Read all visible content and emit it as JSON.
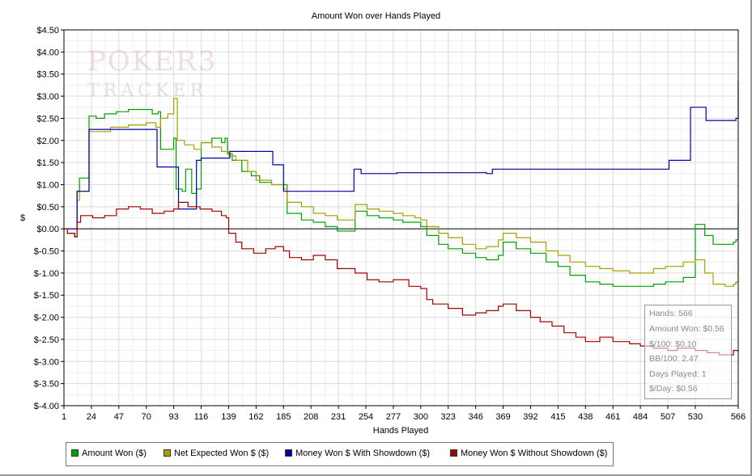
{
  "chart_data": {
    "type": "line",
    "title": "Amount Won over Hands Played",
    "xlabel": "Hands Played",
    "ylabel": "$",
    "xlim": [
      1,
      566
    ],
    "ylim": [
      -4.0,
      4.5
    ],
    "x_ticks": [
      1,
      24,
      47,
      70,
      93,
      116,
      139,
      162,
      185,
      208,
      231,
      254,
      277,
      300,
      323,
      346,
      369,
      392,
      415,
      438,
      461,
      484,
      507,
      530,
      566
    ],
    "y_ticks": [
      {
        "value": 4.5,
        "label": "$4.50"
      },
      {
        "value": 4.0,
        "label": "$4.00"
      },
      {
        "value": 3.5,
        "label": "$3.50"
      },
      {
        "value": 3.0,
        "label": "$3.00"
      },
      {
        "value": 2.5,
        "label": "$2.50"
      },
      {
        "value": 2.0,
        "label": "$2.00"
      },
      {
        "value": 1.5,
        "label": "$1.50"
      },
      {
        "value": 1.0,
        "label": "$1.00"
      },
      {
        "value": 0.5,
        "label": "$0.50"
      },
      {
        "value": 0.0,
        "label": "$0.00"
      },
      {
        "value": -0.5,
        "label": "$-0.50"
      },
      {
        "value": -1.0,
        "label": "$-1.00"
      },
      {
        "value": -1.5,
        "label": "$-1.50"
      },
      {
        "value": -2.0,
        "label": "$-2.00"
      },
      {
        "value": -2.5,
        "label": "$-2.50"
      },
      {
        "value": -3.0,
        "label": "$-3.00"
      },
      {
        "value": -3.5,
        "label": "$-3.50"
      },
      {
        "value": -4.0,
        "label": "$-4.00"
      }
    ],
    "grid": true,
    "legend_position": "bottom",
    "series": [
      {
        "name": "Amount Won ($)",
        "color": "#00a000",
        "points": [
          [
            1,
            0
          ],
          [
            4,
            -0.1
          ],
          [
            10,
            -0.18
          ],
          [
            12,
            0.85
          ],
          [
            14,
            1.15
          ],
          [
            20,
            1.15
          ],
          [
            22,
            2.55
          ],
          [
            28,
            2.5
          ],
          [
            35,
            2.6
          ],
          [
            45,
            2.65
          ],
          [
            55,
            2.7
          ],
          [
            70,
            2.7
          ],
          [
            75,
            2.6
          ],
          [
            80,
            2.65
          ],
          [
            82,
            1.8
          ],
          [
            88,
            1.8
          ],
          [
            93,
            2.05
          ],
          [
            95,
            0.9
          ],
          [
            100,
            0.85
          ],
          [
            103,
            1.35
          ],
          [
            108,
            0.8
          ],
          [
            112,
            0.9
          ],
          [
            116,
            1.95
          ],
          [
            125,
            2.05
          ],
          [
            133,
            1.95
          ],
          [
            136,
            2.05
          ],
          [
            138,
            1.7
          ],
          [
            142,
            1.55
          ],
          [
            150,
            1.3
          ],
          [
            158,
            1.2
          ],
          [
            165,
            1.05
          ],
          [
            175,
            1.0
          ],
          [
            185,
            1.0
          ],
          [
            188,
            0.35
          ],
          [
            200,
            0.2
          ],
          [
            210,
            0.15
          ],
          [
            220,
            0.05
          ],
          [
            230,
            -0.05
          ],
          [
            243,
            -0.05
          ],
          [
            245,
            0.4
          ],
          [
            255,
            0.3
          ],
          [
            265,
            0.25
          ],
          [
            277,
            0.2
          ],
          [
            285,
            0.15
          ],
          [
            300,
            0.05
          ],
          [
            305,
            -0.15
          ],
          [
            315,
            -0.35
          ],
          [
            323,
            -0.45
          ],
          [
            335,
            -0.55
          ],
          [
            346,
            -0.65
          ],
          [
            355,
            -0.7
          ],
          [
            365,
            -0.6
          ],
          [
            369,
            -0.3
          ],
          [
            380,
            -0.45
          ],
          [
            392,
            -0.55
          ],
          [
            405,
            -0.75
          ],
          [
            415,
            -0.85
          ],
          [
            425,
            -1.05
          ],
          [
            438,
            -1.2
          ],
          [
            450,
            -1.25
          ],
          [
            461,
            -1.3
          ],
          [
            475,
            -1.3
          ],
          [
            484,
            -1.3
          ],
          [
            495,
            -1.25
          ],
          [
            505,
            -1.2
          ],
          [
            520,
            -1.1
          ],
          [
            528,
            -1.1
          ],
          [
            530,
            0.1
          ],
          [
            538,
            -0.15
          ],
          [
            545,
            -0.35
          ],
          [
            555,
            -0.35
          ],
          [
            562,
            -0.3
          ],
          [
            564,
            -0.25
          ],
          [
            566,
            0.56
          ]
        ]
      },
      {
        "name": "Net Expected Won $ ($)",
        "color": "#a5a000",
        "points": [
          [
            1,
            0
          ],
          [
            4,
            -0.1
          ],
          [
            10,
            -0.18
          ],
          [
            12,
            0.65
          ],
          [
            14,
            0.85
          ],
          [
            20,
            0.85
          ],
          [
            22,
            2.2
          ],
          [
            30,
            2.2
          ],
          [
            40,
            2.3
          ],
          [
            55,
            2.35
          ],
          [
            70,
            2.4
          ],
          [
            78,
            2.3
          ],
          [
            82,
            2.5
          ],
          [
            88,
            2.6
          ],
          [
            93,
            2.95
          ],
          [
            96,
            2.0
          ],
          [
            102,
            1.9
          ],
          [
            110,
            1.8
          ],
          [
            116,
            1.95
          ],
          [
            125,
            1.85
          ],
          [
            133,
            1.75
          ],
          [
            139,
            1.65
          ],
          [
            145,
            1.55
          ],
          [
            155,
            1.3
          ],
          [
            162,
            1.1
          ],
          [
            175,
            1.0
          ],
          [
            185,
            0.9
          ],
          [
            188,
            0.6
          ],
          [
            200,
            0.5
          ],
          [
            210,
            0.35
          ],
          [
            220,
            0.3
          ],
          [
            230,
            0.2
          ],
          [
            243,
            0.2
          ],
          [
            245,
            0.55
          ],
          [
            255,
            0.45
          ],
          [
            265,
            0.4
          ],
          [
            277,
            0.35
          ],
          [
            285,
            0.3
          ],
          [
            295,
            0.25
          ],
          [
            300,
            0.2
          ],
          [
            305,
            0.05
          ],
          [
            315,
            -0.1
          ],
          [
            323,
            -0.2
          ],
          [
            335,
            -0.35
          ],
          [
            346,
            -0.45
          ],
          [
            355,
            -0.4
          ],
          [
            365,
            -0.25
          ],
          [
            369,
            -0.1
          ],
          [
            380,
            -0.2
          ],
          [
            392,
            -0.3
          ],
          [
            405,
            -0.5
          ],
          [
            415,
            -0.6
          ],
          [
            425,
            -0.75
          ],
          [
            438,
            -0.85
          ],
          [
            450,
            -0.9
          ],
          [
            461,
            -0.95
          ],
          [
            475,
            -1.0
          ],
          [
            484,
            -1.0
          ],
          [
            495,
            -0.9
          ],
          [
            505,
            -0.85
          ],
          [
            520,
            -0.75
          ],
          [
            530,
            -0.7
          ],
          [
            538,
            -1.0
          ],
          [
            545,
            -1.25
          ],
          [
            555,
            -1.3
          ],
          [
            562,
            -1.25
          ],
          [
            564,
            -1.2
          ],
          [
            566,
            -0.65
          ]
        ]
      },
      {
        "name": "Money Won $ With Showdown ($)",
        "color": "#0000a0",
        "points": [
          [
            1,
            0
          ],
          [
            12,
            0
          ],
          [
            12,
            0.85
          ],
          [
            21,
            0.85
          ],
          [
            22,
            2.25
          ],
          [
            78,
            2.25
          ],
          [
            79,
            1.4
          ],
          [
            96,
            1.4
          ],
          [
            97,
            0.45
          ],
          [
            112,
            0.45
          ],
          [
            112,
            1.55
          ],
          [
            116,
            1.6
          ],
          [
            139,
            1.6
          ],
          [
            140,
            1.75
          ],
          [
            175,
            1.75
          ],
          [
            176,
            1.45
          ],
          [
            184,
            1.45
          ],
          [
            185,
            0.85
          ],
          [
            243,
            0.85
          ],
          [
            244,
            1.35
          ],
          [
            249,
            1.35
          ],
          [
            250,
            1.25
          ],
          [
            280,
            1.27
          ],
          [
            355,
            1.25
          ],
          [
            360,
            1.35
          ],
          [
            507,
            1.35
          ],
          [
            508,
            1.55
          ],
          [
            525,
            1.55
          ],
          [
            526,
            2.75
          ],
          [
            538,
            2.75
          ],
          [
            539,
            2.45
          ],
          [
            562,
            2.45
          ],
          [
            564,
            2.5
          ],
          [
            566,
            3.35
          ]
        ]
      },
      {
        "name": "Money Won $ Without Showdown ($)",
        "color": "#a00000",
        "points": [
          [
            1,
            0
          ],
          [
            4,
            -0.1
          ],
          [
            10,
            -0.18
          ],
          [
            12,
            0.15
          ],
          [
            15,
            0.3
          ],
          [
            25,
            0.25
          ],
          [
            35,
            0.3
          ],
          [
            45,
            0.45
          ],
          [
            55,
            0.5
          ],
          [
            65,
            0.45
          ],
          [
            75,
            0.35
          ],
          [
            85,
            0.4
          ],
          [
            93,
            0.45
          ],
          [
            97,
            0.6
          ],
          [
            105,
            0.5
          ],
          [
            115,
            0.45
          ],
          [
            125,
            0.4
          ],
          [
            133,
            0.3
          ],
          [
            137,
            0.25
          ],
          [
            139,
            -0.1
          ],
          [
            145,
            -0.3
          ],
          [
            150,
            -0.45
          ],
          [
            160,
            -0.55
          ],
          [
            170,
            -0.45
          ],
          [
            178,
            -0.4
          ],
          [
            185,
            -0.5
          ],
          [
            190,
            -0.65
          ],
          [
            200,
            -0.7
          ],
          [
            210,
            -0.6
          ],
          [
            220,
            -0.7
          ],
          [
            230,
            -0.9
          ],
          [
            245,
            -1.0
          ],
          [
            255,
            -1.15
          ],
          [
            265,
            -1.2
          ],
          [
            277,
            -1.15
          ],
          [
            290,
            -1.3
          ],
          [
            300,
            -1.35
          ],
          [
            305,
            -1.6
          ],
          [
            310,
            -1.7
          ],
          [
            323,
            -1.8
          ],
          [
            335,
            -1.95
          ],
          [
            346,
            -1.9
          ],
          [
            355,
            -1.85
          ],
          [
            365,
            -1.75
          ],
          [
            369,
            -1.7
          ],
          [
            380,
            -1.85
          ],
          [
            392,
            -2.0
          ],
          [
            400,
            -2.1
          ],
          [
            410,
            -2.2
          ],
          [
            420,
            -2.35
          ],
          [
            430,
            -2.45
          ],
          [
            438,
            -2.55
          ],
          [
            450,
            -2.45
          ],
          [
            461,
            -2.55
          ],
          [
            475,
            -2.6
          ],
          [
            484,
            -2.65
          ],
          [
            495,
            -2.7
          ],
          [
            507,
            -2.75
          ],
          [
            515,
            -2.7
          ],
          [
            525,
            -2.7
          ],
          [
            530,
            -2.75
          ],
          [
            540,
            -2.8
          ],
          [
            550,
            -2.85
          ],
          [
            558,
            -2.85
          ],
          [
            562,
            -2.75
          ],
          [
            566,
            -2.8
          ]
        ]
      }
    ],
    "stats_box": {
      "position": "bottom-right",
      "lines": [
        "Hands: 566",
        "Amount Won: $0.56",
        "$/100: $0.10",
        "BB/100: 2.47",
        "Days Played: 1",
        "$/Day: $0.56"
      ]
    },
    "watermark": {
      "line1": "POKER3",
      "line2": "TRACKER"
    }
  }
}
